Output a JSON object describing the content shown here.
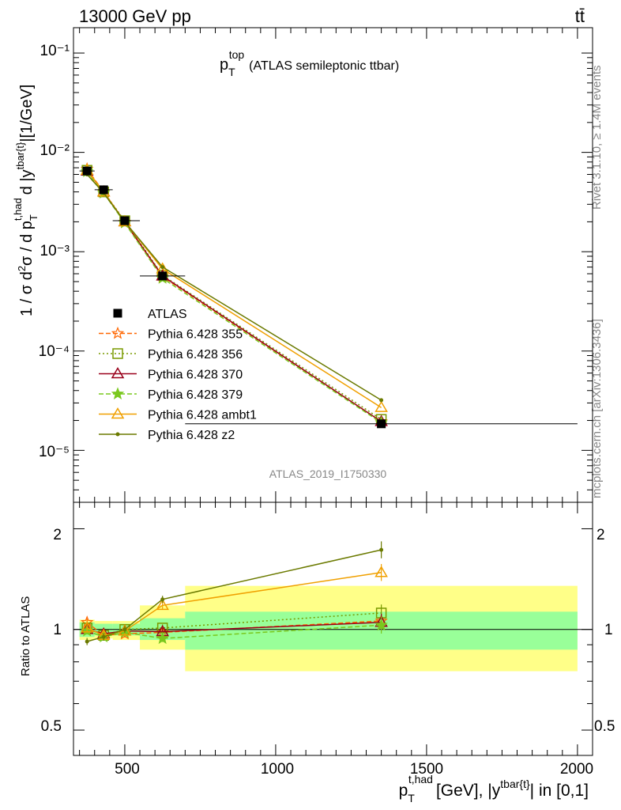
{
  "header": {
    "energy_label": "13000 GeV pp",
    "process_label": "tt̄"
  },
  "side_labels": {
    "rivet": "Rivet 3.1.10, ≥ 1.4M events",
    "mcplots": "mcplots.cern.ch [arXiv:1306.3436]"
  },
  "chart_data": [
    {
      "type": "line",
      "panel": "main",
      "title": "p_T^top (ATLAS semileptonic ttbar)",
      "title_parts": {
        "base": "p",
        "sub": "T",
        "sup": "top",
        "rest": "(ATLAS semileptonic ttbar)"
      },
      "ylabel": "1 / σ d²σ / d p_T^{t,had} d |y^{tbar{t}}|[1/GeV]",
      "ylabel_parts": {
        "a": "1 / σ d",
        "b": "2",
        "c": "σ / d p",
        "d": "T",
        "e": "t,had",
        "f": "d |y",
        "g": "tbar{t}",
        "h": "|[1/GeV]"
      },
      "yscale": "log",
      "ylim": [
        3e-06,
        0.18
      ],
      "xlim": [
        330,
        2050
      ],
      "ytick_labels": [
        "10⁻¹",
        "10⁻²",
        "10⁻³",
        "10⁻⁴",
        "10⁻⁵"
      ],
      "watermark": "ATLAS_2019_I1750330",
      "x": [
        375,
        430,
        500,
        625,
        1350
      ],
      "x_err": [
        [
          350,
          400
        ],
        [
          400,
          460
        ],
        [
          460,
          550
        ],
        [
          550,
          700
        ],
        [
          700,
          2000
        ]
      ],
      "data": {
        "name": "ATLAS",
        "values": [
          0.0065,
          0.0042,
          0.00205,
          0.00057,
          1.85e-05
        ]
      },
      "series": [
        {
          "name": "Pythia 6.428 355",
          "color": "#ff6600",
          "dash": "6,3",
          "marker": "star-open",
          "values": [
            0.0068,
            0.004,
            0.00198,
            0.00056,
            1.95e-05
          ],
          "ratio": [
            1.05,
            0.96,
            0.97,
            0.98,
            1.06
          ]
        },
        {
          "name": "Pythia 6.428 356",
          "color": "#7a9a00",
          "dash": "2,3",
          "marker": "square-open",
          "values": [
            0.0066,
            0.004,
            0.00205,
            0.00058,
            2.05e-05
          ],
          "ratio": [
            1.01,
            0.96,
            1.0,
            1.01,
            1.12
          ]
        },
        {
          "name": "Pythia 6.428 370",
          "color": "#99001a",
          "dash": "",
          "marker": "triangle-open",
          "values": [
            0.0065,
            0.004,
            0.002,
            0.00057,
            1.95e-05
          ],
          "ratio": [
            1.0,
            0.97,
            0.99,
            0.985,
            1.05
          ]
        },
        {
          "name": "Pythia 6.428 379",
          "color": "#7ac81e",
          "dash": "6,3",
          "marker": "star-filled",
          "values": [
            0.0064,
            0.0039,
            0.00195,
            0.00054,
            1.9e-05
          ],
          "ratio": [
            0.99,
            0.95,
            0.98,
            0.94,
            1.03
          ]
        },
        {
          "name": "Pythia 6.428 ambt1",
          "color": "#f0a000",
          "dash": "",
          "marker": "triangle-open",
          "values": [
            0.0066,
            0.004,
            0.002,
            0.00067,
            2.7e-05
          ],
          "ratio": [
            1.01,
            0.96,
            0.99,
            1.18,
            1.48
          ]
        },
        {
          "name": "Pythia 6.428 z2",
          "color": "#6b7a00",
          "dash": "",
          "marker": "dot",
          "values": [
            0.006,
            0.0039,
            0.002,
            0.0007,
            3.2e-05
          ],
          "ratio": [
            0.92,
            0.95,
            1.0,
            1.23,
            1.73
          ]
        }
      ]
    },
    {
      "type": "line",
      "panel": "ratio",
      "ylabel": "Ratio to ATLAS",
      "yscale": "log",
      "ylim": [
        0.42,
        2.4
      ],
      "ytick_labels": [
        "2",
        "1",
        "0.5"
      ],
      "xlabel": "p_T^{t,had} [GeV], |y^{tbar{t}}| in [0,1]",
      "xlabel_parts": {
        "a": "p",
        "b": "T",
        "c": "t,had",
        "d": "[GeV], |y",
        "e": "tbar{t}",
        "f": "| in [0,1]"
      },
      "xtick_labels": [
        "500",
        "1000",
        "1500",
        "2000"
      ],
      "bands": [
        {
          "x": [
            350,
            400
          ],
          "stat": [
            0.95,
            1.05
          ],
          "total": [
            0.93,
            1.07
          ]
        },
        {
          "x": [
            400,
            460
          ],
          "stat": [
            0.96,
            1.04
          ],
          "total": [
            0.94,
            1.06
          ]
        },
        {
          "x": [
            460,
            550
          ],
          "stat": [
            0.96,
            1.04
          ],
          "total": [
            0.93,
            1.06
          ]
        },
        {
          "x": [
            550,
            700
          ],
          "stat": [
            0.93,
            1.08
          ],
          "total": [
            0.87,
            1.18
          ]
        },
        {
          "x": [
            700,
            2000
          ],
          "stat": [
            0.87,
            1.13
          ],
          "total": [
            0.75,
            1.35
          ]
        }
      ]
    }
  ]
}
